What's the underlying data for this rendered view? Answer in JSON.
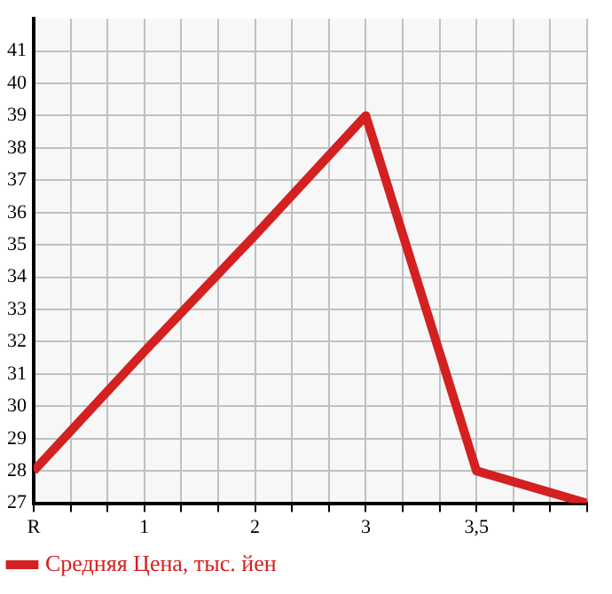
{
  "chart_data": {
    "type": "line",
    "categories": [
      "R",
      "1",
      "2",
      "3",
      "3,5",
      null
    ],
    "series": [
      {
        "name": "Средняя Цена, тыс. йен",
        "color": "#d42020",
        "values": [
          28,
          31.7,
          35.3,
          39,
          28,
          27
        ]
      }
    ],
    "ylim": [
      27,
      42
    ],
    "yticks": [
      27,
      28,
      29,
      30,
      31,
      32,
      33,
      34,
      35,
      36,
      37,
      38,
      39,
      40,
      41
    ],
    "grid": true,
    "legend": "bottom",
    "marker": "none",
    "line_style": "solid"
  }
}
